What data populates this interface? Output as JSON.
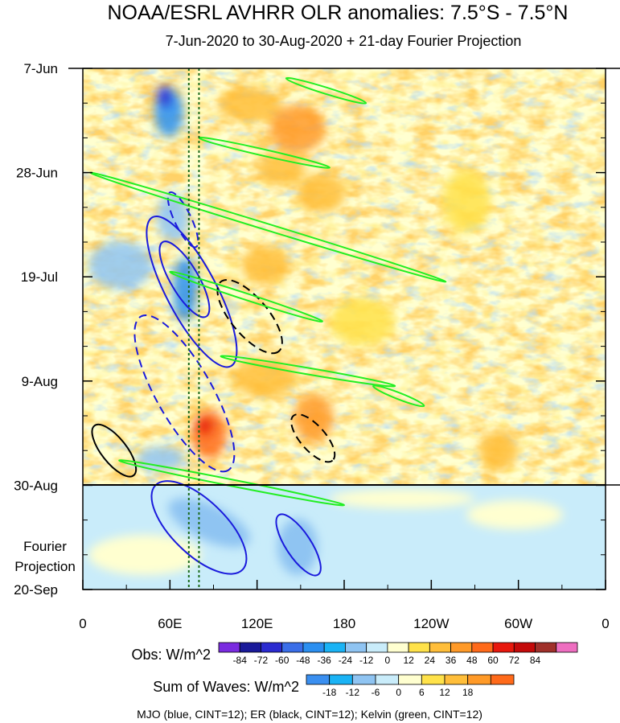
{
  "title": "NOAA/ESRL AVHRR OLR anomalies: 7.5°S - 7.5°N",
  "subtitle": "7-Jun-2020 to 30-Aug-2020 + 21-day Fourier Projection",
  "footer": "MJO (blue, CINT=12); ER (black, CINT=12); Kelvin (green, CINT=12)",
  "projection_label": [
    "Fourier",
    "Projection"
  ],
  "colors": {
    "obs": [
      "#7a2be0",
      "#1a1a9a",
      "#2b2bd0",
      "#3a6ee8",
      "#2b8ff0",
      "#1ab3f5",
      "#8fc4f2",
      "#c9ecfa",
      "#ffffd0",
      "#ffe24a",
      "#ffbe3a",
      "#ff9a28",
      "#ff6a1a",
      "#e8180d",
      "#c40a0a",
      "#a0302a",
      "#ee6ec0"
    ],
    "waves": [
      "#3a8ff0",
      "#1ab3f5",
      "#8fc4f2",
      "#c9ecfa",
      "#ffffd0",
      "#ffe24a",
      "#ffbe3a",
      "#ff9a28",
      "#ff6a1a"
    ],
    "mjo": "#1a1adc",
    "er": "#000000",
    "kelvin": "#22ee22"
  },
  "chart_data": {
    "type": "heatmap",
    "x_axis": {
      "ticks": [
        "0",
        "60E",
        "120E",
        "180",
        "120W",
        "60W",
        "0"
      ],
      "tick_values_deg_east": [
        0,
        60,
        120,
        180,
        240,
        300,
        360
      ],
      "range_deg_east": [
        0,
        360
      ]
    },
    "y_axis": {
      "ticks": [
        "7-Jun",
        "28-Jun",
        "19-Jul",
        "9-Aug",
        "30-Aug",
        "20-Sep"
      ],
      "range": [
        "7-Jun-2020",
        "20-Sep-2020"
      ],
      "reversed": true
    },
    "observation_period": [
      "7-Jun-2020",
      "30-Aug-2020"
    ],
    "projection_period": [
      "30-Aug-2020",
      "20-Sep-2020"
    ],
    "reference_lines_dotted_deg_east": [
      73,
      80
    ],
    "colorbars": [
      {
        "label": "Obs: W/m^2",
        "levels": [
          -84,
          -72,
          -60,
          -48,
          -36,
          -24,
          -12,
          0,
          12,
          24,
          36,
          48,
          60,
          72,
          84
        ]
      },
      {
        "label": "Sum of Waves: W/m^2",
        "levels": [
          -18,
          -12,
          -6,
          0,
          6,
          12,
          18
        ]
      }
    ],
    "contours": [
      {
        "wave": "MJO",
        "style": "solid",
        "polarity": "negative",
        "lon": [
          48,
          102
        ],
        "dates": [
          "7-Jul-2020",
          "6-Aug-2020"
        ]
      },
      {
        "wave": "MJO",
        "style": "solid",
        "polarity": "negative",
        "lon": [
          55,
          85
        ],
        "dates": [
          "12-Jul-2020",
          "27-Jul-2020"
        ]
      },
      {
        "wave": "MJO",
        "style": "dashed",
        "polarity": "positive",
        "lon": [
          40,
          100
        ],
        "dates": [
          "27-Jul-2020",
          "27-Aug-2020"
        ]
      },
      {
        "wave": "MJO",
        "style": "dashed",
        "polarity": "positive",
        "lon": [
          60,
          78
        ],
        "dates": [
          "2-Jul-2020",
          "13-Jul-2020"
        ]
      },
      {
        "wave": "MJO",
        "style": "solid",
        "polarity": "negative",
        "lon": [
          50,
          110
        ],
        "dates": [
          "30-Aug-2020",
          "16-Sep-2020"
        ]
      },
      {
        "wave": "MJO",
        "style": "solid",
        "polarity": "negative",
        "lon": [
          135,
          162
        ],
        "dates": [
          "5-Sep-2020",
          "17-Sep-2020"
        ]
      },
      {
        "wave": "ER",
        "style": "solid",
        "polarity": "negative",
        "lon": [
          8,
          35
        ],
        "dates": [
          "18-Aug-2020",
          "28-Aug-2020"
        ]
      },
      {
        "wave": "ER",
        "style": "dashed",
        "polarity": "positive",
        "lon": [
          95,
          135
        ],
        "dates": [
          "20-Jul-2020",
          "3-Aug-2020"
        ]
      },
      {
        "wave": "ER",
        "style": "dashed",
        "polarity": "positive",
        "lon": [
          145,
          172
        ],
        "dates": [
          "16-Aug-2020",
          "25-Aug-2020"
        ]
      },
      {
        "wave": "Kelvin",
        "style": "solid",
        "polarity": "negative",
        "lon": [
          5,
          250
        ],
        "dates": [
          "28-Jun-2020",
          "20-Jul-2020"
        ]
      },
      {
        "wave": "Kelvin",
        "style": "solid",
        "polarity": "negative",
        "lon": [
          60,
          165
        ],
        "dates": [
          "18-Jul-2020",
          "28-Jul-2020"
        ]
      },
      {
        "wave": "Kelvin",
        "style": "solid",
        "polarity": "negative",
        "lon": [
          140,
          195
        ],
        "dates": [
          "9-Jun-2020",
          "14-Jun-2020"
        ]
      },
      {
        "wave": "Kelvin",
        "style": "solid",
        "polarity": "negative",
        "lon": [
          80,
          170
        ],
        "dates": [
          "21-Jun-2020",
          "27-Jun-2020"
        ]
      },
      {
        "wave": "Kelvin",
        "style": "solid",
        "polarity": "negative",
        "lon": [
          95,
          215
        ],
        "dates": [
          "4-Aug-2020",
          "10-Aug-2020"
        ]
      },
      {
        "wave": "Kelvin",
        "style": "solid",
        "polarity": "negative",
        "lon": [
          200,
          235
        ],
        "dates": [
          "10-Aug-2020",
          "14-Aug-2020"
        ]
      },
      {
        "wave": "Kelvin",
        "style": "solid",
        "polarity": "negative",
        "lon": [
          25,
          180
        ],
        "dates": [
          "25-Aug-2020",
          "3-Sep-2020"
        ]
      }
    ]
  }
}
